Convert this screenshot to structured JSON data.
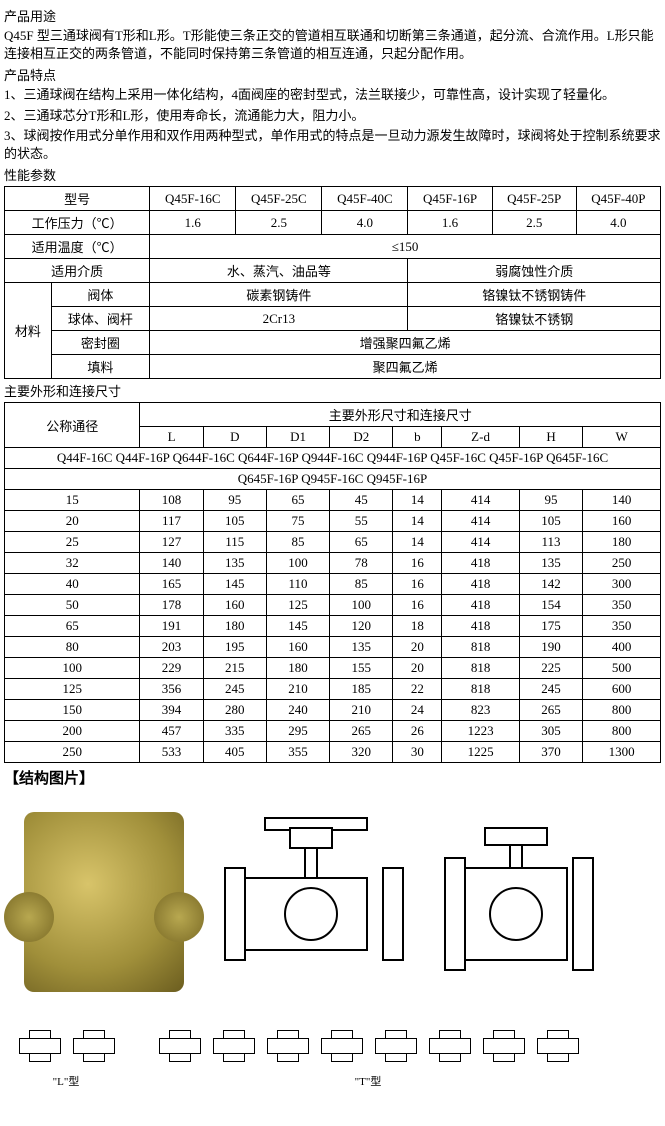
{
  "titles": {
    "usage": "产品用途",
    "features": "产品特点",
    "perf": "性能参数",
    "dims": "主要外形和连接尺寸",
    "struct": "【结构图片】"
  },
  "usage_text": "Q45F 型三通球阀有T形和L形。T形能使三条正交的管道相互联通和切断第三条通道，起分流、合流作用。L形只能连接相互正交的两条管道，不能同时保持第三条管道的相互连通，只起分配作用。",
  "features": [
    "1、三通球阀在结构上采用一体化结构，4面阀座的密封型式，法兰联接少，可靠性高，设计实现了轻量化。",
    "2、三通球芯分T形和L形，使用寿命长，流通能力大，阻力小。",
    "3、球阀按作用式分单作用和双作用两种型式，单作用式的特点是一旦动力源发生故障时，球阀将处于控制系统要求的状态。"
  ],
  "perf_table": {
    "headers": {
      "model": "型号",
      "pressure": "工作压力（℃）",
      "temp": "适用温度（℃）",
      "medium": "适用介质",
      "material": "材料",
      "body": "阀体",
      "ball_stem": "球体、阀杆",
      "seal": "密封圈",
      "packing": "填料"
    },
    "models": [
      "Q45F-16C",
      "Q45F-25C",
      "Q45F-40C",
      "Q45F-16P",
      "Q45F-25P",
      "Q45F-40P"
    ],
    "pressures": [
      "1.6",
      "2.5",
      "4.0",
      "1.6",
      "2.5",
      "4.0"
    ],
    "temp_val": "≤150",
    "medium_left": "水、蒸汽、油品等",
    "medium_right": "弱腐蚀性介质",
    "body_left": "碳素钢铸件",
    "body_right": "铬镍钛不锈钢铸件",
    "ball_left": "2Cr13",
    "ball_right": "铬镍钛不锈钢",
    "seal_val": "增强聚四氟乙烯",
    "packing_val": "聚四氟乙烯"
  },
  "dim_table": {
    "dn_header": "公称通径",
    "main_header": "主要外形尺寸和连接尺寸",
    "cols": [
      "L",
      "D",
      "D1",
      "D2",
      "b",
      "Z-d",
      "H",
      "W"
    ],
    "models_line1": "Q44F-16C Q44F-16P Q644F-16C Q644F-16P Q944F-16C Q944F-16P Q45F-16C   Q45F-16P    Q645F-16C",
    "models_line2": "Q645F-16P Q945F-16C Q945F-16P",
    "rows": [
      [
        "15",
        "108",
        "95",
        "65",
        "45",
        "14",
        "414",
        "95",
        "140"
      ],
      [
        "20",
        "117",
        "105",
        "75",
        "55",
        "14",
        "414",
        "105",
        "160"
      ],
      [
        "25",
        "127",
        "115",
        "85",
        "65",
        "14",
        "414",
        "113",
        "180"
      ],
      [
        "32",
        "140",
        "135",
        "100",
        "78",
        "16",
        "418",
        "135",
        "250"
      ],
      [
        "40",
        "165",
        "145",
        "110",
        "85",
        "16",
        "418",
        "142",
        "300"
      ],
      [
        "50",
        "178",
        "160",
        "125",
        "100",
        "16",
        "418",
        "154",
        "350"
      ],
      [
        "65",
        "191",
        "180",
        "145",
        "120",
        "18",
        "418",
        "175",
        "350"
      ],
      [
        "80",
        "203",
        "195",
        "160",
        "135",
        "20",
        "818",
        "190",
        "400"
      ],
      [
        "100",
        "229",
        "215",
        "180",
        "155",
        "20",
        "818",
        "225",
        "500"
      ],
      [
        "125",
        "356",
        "245",
        "210",
        "185",
        "22",
        "818",
        "245",
        "600"
      ],
      [
        "150",
        "394",
        "280",
        "240",
        "210",
        "24",
        "823",
        "265",
        "800"
      ],
      [
        "200",
        "457",
        "335",
        "295",
        "265",
        "26",
        "1223",
        "305",
        "800"
      ],
      [
        "250",
        "533",
        "405",
        "355",
        "320",
        "30",
        "1225",
        "370",
        "1300"
      ]
    ]
  },
  "diagram_labels": {
    "l_type": "\"L\"型",
    "t_type": "\"T\"型"
  }
}
